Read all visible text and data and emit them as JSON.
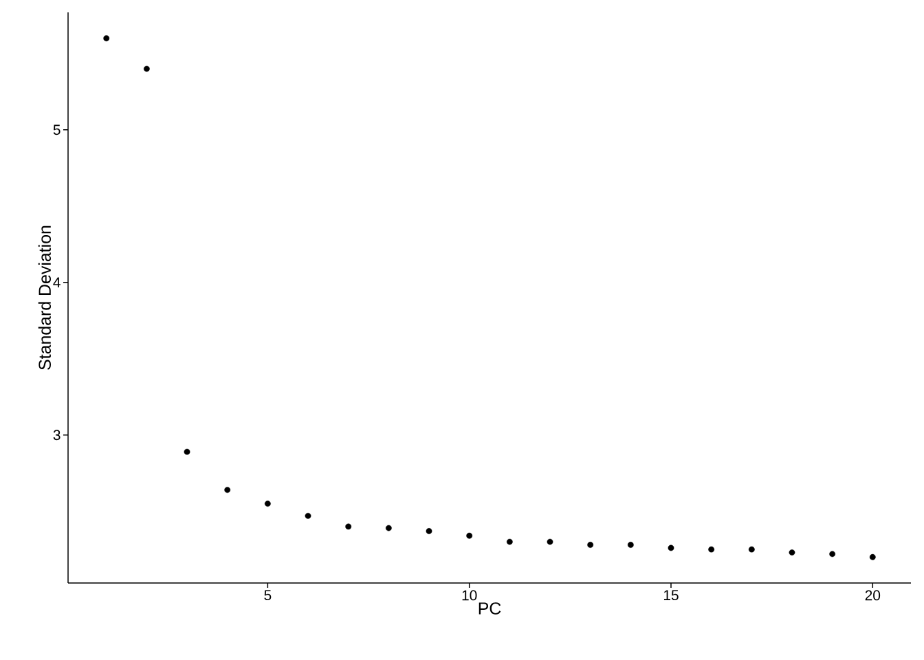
{
  "chart_data": {
    "type": "scatter",
    "xlabel": "PC",
    "ylabel": "Standard Deviation",
    "x": [
      1,
      2,
      3,
      4,
      5,
      6,
      7,
      8,
      9,
      10,
      11,
      12,
      13,
      14,
      15,
      16,
      17,
      18,
      19,
      20
    ],
    "values": [
      5.6,
      5.4,
      2.89,
      2.64,
      2.55,
      2.47,
      2.4,
      2.39,
      2.37,
      2.34,
      2.3,
      2.3,
      2.28,
      2.28,
      2.26,
      2.25,
      2.25,
      2.23,
      2.22,
      2.2
    ],
    "color": "#000000",
    "marker": "circle",
    "xlim": [
      0.05,
      20.95
    ],
    "ylim": [
      2.03,
      5.77
    ],
    "xticks": [
      5,
      10,
      15,
      20
    ],
    "yticks": [
      3,
      4,
      5
    ],
    "grid": false
  }
}
